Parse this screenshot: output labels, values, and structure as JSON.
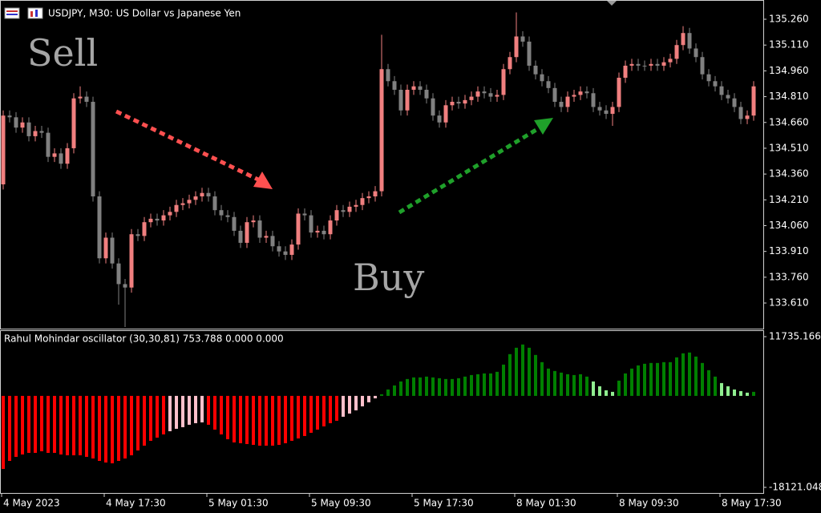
{
  "chart_data": [
    {
      "type": "candlestick",
      "title": "USDJPY, M30:  US Dollar vs Japanese Yen",
      "annotations": [
        "Sell",
        "Buy"
      ],
      "up_color": "#f07f7f",
      "down_color": "#808080",
      "ylim": [
        133.461,
        135.372
      ],
      "yticks": [
        {
          "value": 135.26,
          "label": "135.260"
        },
        {
          "value": 135.11,
          "label": "135.110"
        },
        {
          "value": 134.96,
          "label": "134.960"
        },
        {
          "value": 134.81,
          "label": "134.810"
        },
        {
          "value": 134.66,
          "label": "134.660"
        },
        {
          "value": 134.51,
          "label": "134.510"
        },
        {
          "value": 134.36,
          "label": "134.360"
        },
        {
          "value": 134.21,
          "label": "134.210"
        },
        {
          "value": 134.06,
          "label": "134.060"
        },
        {
          "value": 133.91,
          "label": "133.910"
        },
        {
          "value": 133.76,
          "label": "133.760"
        },
        {
          "value": 133.61,
          "label": "133.610"
        }
      ],
      "open": [
        134.3,
        134.7,
        134.69,
        134.63,
        134.66,
        134.58,
        134.61,
        134.6,
        134.46,
        134.48,
        134.42,
        134.51,
        134.8,
        134.81,
        134.78,
        134.23,
        133.87,
        133.99,
        133.84,
        133.72,
        133.7,
        134.01,
        134.0,
        134.08,
        134.1,
        134.09,
        134.12,
        134.14,
        134.18,
        134.19,
        134.21,
        134.23,
        134.25,
        134.23,
        134.15,
        134.12,
        134.11,
        134.03,
        133.96,
        134.08,
        134.09,
        133.99,
        134.0,
        133.94,
        133.91,
        133.89,
        133.95,
        134.13,
        134.12,
        134.02,
        134.03,
        134.01,
        134.09,
        134.15,
        134.14,
        134.17,
        134.18,
        134.22,
        134.23,
        134.26,
        134.97,
        134.9,
        134.85,
        134.73,
        134.85,
        134.87,
        134.85,
        134.8,
        134.7,
        134.66,
        134.76,
        134.78,
        134.77,
        134.79,
        134.81,
        134.84,
        134.83,
        134.81,
        134.82,
        134.97,
        135.04,
        135.16,
        135.13,
        134.99,
        134.94,
        134.9,
        134.86,
        134.78,
        134.75,
        134.81,
        134.82,
        134.84,
        134.83,
        134.75,
        134.73,
        134.71,
        134.75,
        134.92,
        134.99,
        135.0,
        134.99,
        134.99,
        135.0,
        134.99,
        135.01,
        135.03,
        135.11,
        135.18,
        135.09,
        135.04,
        134.94,
        134.9,
        134.87,
        134.82,
        134.8,
        134.75,
        134.68,
        134.7
      ],
      "high": [
        134.73,
        134.73,
        134.72,
        134.69,
        134.69,
        134.64,
        134.64,
        134.63,
        134.51,
        134.51,
        134.54,
        134.83,
        134.87,
        134.84,
        134.81,
        134.26,
        134.02,
        134.02,
        133.87,
        133.75,
        134.04,
        134.04,
        134.11,
        134.13,
        134.13,
        134.15,
        134.17,
        134.21,
        134.22,
        134.24,
        134.26,
        134.28,
        134.28,
        134.26,
        134.18,
        134.15,
        134.14,
        134.06,
        134.11,
        134.12,
        134.12,
        134.03,
        134.03,
        133.97,
        133.94,
        133.98,
        134.16,
        134.16,
        134.15,
        134.06,
        134.06,
        134.12,
        134.18,
        134.18,
        134.2,
        134.21,
        134.25,
        134.26,
        134.29,
        135.17,
        135.0,
        134.93,
        134.88,
        134.88,
        134.9,
        134.9,
        134.88,
        134.83,
        134.73,
        134.79,
        134.81,
        134.81,
        134.82,
        134.84,
        134.87,
        134.87,
        134.86,
        134.85,
        135.0,
        135.07,
        135.3,
        135.19,
        135.16,
        135.02,
        134.97,
        134.93,
        134.89,
        134.81,
        134.84,
        134.85,
        134.87,
        134.87,
        134.86,
        134.78,
        134.76,
        134.78,
        134.95,
        135.02,
        135.03,
        135.03,
        135.02,
        135.03,
        135.03,
        135.04,
        135.06,
        135.14,
        135.22,
        135.21,
        135.12,
        135.07,
        134.97,
        134.93,
        134.9,
        134.85,
        134.83,
        134.78,
        134.73,
        134.9
      ],
      "low": [
        134.27,
        134.66,
        134.6,
        134.6,
        134.55,
        134.55,
        134.57,
        134.43,
        134.43,
        134.39,
        134.39,
        134.48,
        134.77,
        134.75,
        134.2,
        133.84,
        133.84,
        133.81,
        133.6,
        133.47,
        133.67,
        133.97,
        133.97,
        134.05,
        134.06,
        134.06,
        134.09,
        134.11,
        134.15,
        134.16,
        134.18,
        134.2,
        134.2,
        134.12,
        134.09,
        134.08,
        134.0,
        133.93,
        133.93,
        134.05,
        133.96,
        133.96,
        133.91,
        133.88,
        133.86,
        133.86,
        133.92,
        134.09,
        133.99,
        133.99,
        133.98,
        133.98,
        134.06,
        134.11,
        134.11,
        134.14,
        134.15,
        134.19,
        134.2,
        134.23,
        134.87,
        134.82,
        134.7,
        134.7,
        134.82,
        134.82,
        134.77,
        134.67,
        134.63,
        134.63,
        134.73,
        134.74,
        134.74,
        134.76,
        134.78,
        134.8,
        134.78,
        134.78,
        134.79,
        134.94,
        135.01,
        135.1,
        134.96,
        134.91,
        134.87,
        134.83,
        134.75,
        134.72,
        134.72,
        134.78,
        134.79,
        134.8,
        134.72,
        134.7,
        134.68,
        134.64,
        134.72,
        134.89,
        134.96,
        134.96,
        134.96,
        134.96,
        134.96,
        134.96,
        134.98,
        135.0,
        135.08,
        135.06,
        135.01,
        134.91,
        134.87,
        134.84,
        134.79,
        134.77,
        134.72,
        134.65,
        134.65,
        134.67
      ],
      "close": [
        134.7,
        134.69,
        134.63,
        134.66,
        134.58,
        134.61,
        134.6,
        134.46,
        134.48,
        134.42,
        134.51,
        134.8,
        134.81,
        134.78,
        134.23,
        133.87,
        133.99,
        133.84,
        133.72,
        133.7,
        134.01,
        134.0,
        134.08,
        134.1,
        134.09,
        134.12,
        134.14,
        134.18,
        134.19,
        134.21,
        134.23,
        134.25,
        134.23,
        134.15,
        134.12,
        134.11,
        134.03,
        133.96,
        134.08,
        134.09,
        133.99,
        134.0,
        133.94,
        133.91,
        133.89,
        133.95,
        134.13,
        134.12,
        134.02,
        134.03,
        134.01,
        134.09,
        134.15,
        134.14,
        134.17,
        134.18,
        134.22,
        134.23,
        134.26,
        134.97,
        134.9,
        134.85,
        134.73,
        134.85,
        134.87,
        134.85,
        134.8,
        134.7,
        134.66,
        134.76,
        134.78,
        134.77,
        134.79,
        134.81,
        134.84,
        134.83,
        134.81,
        134.82,
        134.97,
        135.04,
        135.16,
        135.13,
        134.99,
        134.94,
        134.9,
        134.86,
        134.78,
        134.75,
        134.81,
        134.82,
        134.84,
        134.83,
        134.75,
        134.73,
        134.71,
        134.75,
        134.92,
        134.99,
        135.0,
        134.99,
        134.99,
        135.0,
        134.99,
        135.01,
        135.03,
        135.11,
        135.18,
        135.09,
        135.04,
        134.94,
        134.9,
        134.87,
        134.82,
        134.8,
        134.75,
        134.68,
        134.7,
        134.87
      ]
    },
    {
      "type": "bar",
      "title": "Rahul Mohindar oscillator (30,30,81) 753.788 0.000 0.000",
      "ylim": [
        -19391,
        13006
      ],
      "yticks": [
        11735.166,
        -18121.048
      ],
      "categories": [
        "4 May 2023",
        null,
        null,
        null,
        null,
        null,
        null,
        null,
        null,
        null,
        null,
        null,
        null,
        null,
        null,
        null,
        "4 May 17:30",
        null,
        null,
        null,
        null,
        null,
        null,
        null,
        null,
        null,
        null,
        null,
        null,
        null,
        null,
        null,
        "5 May 01:30",
        null,
        null,
        null,
        null,
        null,
        null,
        null,
        null,
        null,
        null,
        null,
        null,
        null,
        null,
        null,
        "5 May 09:30",
        null,
        null,
        null,
        null,
        null,
        null,
        null,
        null,
        null,
        null,
        null,
        null,
        null,
        null,
        null,
        "5 May 17:30",
        null,
        null,
        null,
        null,
        null,
        null,
        null,
        null,
        null,
        null,
        null,
        null,
        null,
        null,
        null,
        "8 May 01:30",
        null,
        null,
        null,
        null,
        null,
        null,
        null,
        null,
        null,
        null,
        null,
        null,
        null,
        null,
        null,
        "8 May 09:30",
        null,
        null,
        null,
        null,
        null,
        null,
        null,
        null,
        null,
        null,
        null,
        null,
        null,
        null,
        null,
        "8 May 17:30",
        null,
        null,
        null,
        null,
        null
      ],
      "values": [
        -14470,
        -12880,
        -12080,
        -11610,
        -11290,
        -11290,
        -10970,
        -11290,
        -11290,
        -11610,
        -11770,
        -11770,
        -11770,
        -12080,
        -12400,
        -12880,
        -13200,
        -13360,
        -12880,
        -12400,
        -11770,
        -10810,
        -9860,
        -8900,
        -8270,
        -7630,
        -7000,
        -6520,
        -6200,
        -5720,
        -5410,
        -5250,
        -5720,
        -6680,
        -7630,
        -8590,
        -9220,
        -9380,
        -9540,
        -9700,
        -9860,
        -9860,
        -9860,
        -9700,
        -9380,
        -8900,
        -8430,
        -7950,
        -7310,
        -6680,
        -6040,
        -5410,
        -4930,
        -4130,
        -3500,
        -2860,
        -2070,
        -1270,
        -480,
        320,
        1270,
        2070,
        2860,
        3340,
        3660,
        3660,
        3820,
        3660,
        3500,
        3340,
        3340,
        3500,
        3820,
        4130,
        4290,
        4450,
        4450,
        4770,
        6200,
        8270,
        9540,
        10180,
        9540,
        8110,
        6680,
        5410,
        4930,
        4610,
        4290,
        4130,
        4290,
        3820,
        2860,
        1910,
        1110,
        800,
        3020,
        4450,
        5410,
        6040,
        6360,
        6520,
        6520,
        6680,
        6680,
        7630,
        8430,
        8590,
        7790,
        6520,
        5090,
        3820,
        2540,
        1910,
        1270,
        950,
        640,
        800
      ],
      "colors": [
        "red",
        "red",
        "red",
        "red",
        "red",
        "red",
        "red",
        "red",
        "red",
        "red",
        "red",
        "red",
        "red",
        "red",
        "red",
        "red",
        "red",
        "red",
        "red",
        "red",
        "red",
        "red",
        "red",
        "red",
        "red",
        "red",
        "pink",
        "pink",
        "pink",
        "pink",
        "pink",
        "pink",
        "red",
        "red",
        "red",
        "red",
        "red",
        "red",
        "red",
        "red",
        "red",
        "red",
        "red",
        "red",
        "red",
        "red",
        "red",
        "red",
        "red",
        "red",
        "red",
        "red",
        "red",
        "pink",
        "pink",
        "pink",
        "pink",
        "pink",
        "pink",
        "green",
        "green",
        "green",
        "green",
        "green",
        "green",
        "green",
        "green",
        "green",
        "green",
        "green",
        "green",
        "green",
        "green",
        "green",
        "green",
        "green",
        "green",
        "green",
        "green",
        "green",
        "green",
        "green",
        "green",
        "green",
        "green",
        "green",
        "green",
        "green",
        "green",
        "green",
        "green",
        "green",
        "lightgreen",
        "lightgreen",
        "lightgreen",
        "lightgreen",
        "green",
        "green",
        "green",
        "green",
        "green",
        "green",
        "green",
        "green",
        "green",
        "green",
        "green",
        "green",
        "green",
        "green",
        "green",
        "green",
        "lightgreen",
        "lightgreen",
        "lightgreen",
        "lightgreen",
        "lightgreen",
        "green"
      ]
    }
  ]
}
